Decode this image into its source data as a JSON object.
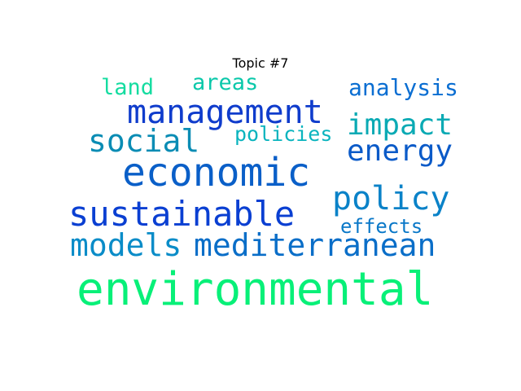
{
  "title": "Topic #7",
  "words": [
    {
      "key": "environmental",
      "text": "environmental",
      "color": "#08f078"
    },
    {
      "key": "economic",
      "text": "economic",
      "color": "#0a5fc8"
    },
    {
      "key": "sustainable",
      "text": "sustainable",
      "color": "#0a3fd2"
    },
    {
      "key": "management",
      "text": "management",
      "color": "#0f3ccc"
    },
    {
      "key": "policy",
      "text": "policy",
      "color": "#0a82c8"
    },
    {
      "key": "mediterranean",
      "text": "mediterranean",
      "color": "#0a6ec8"
    },
    {
      "key": "models",
      "text": "models",
      "color": "#0a8cc8"
    },
    {
      "key": "impact",
      "text": "impact",
      "color": "#0aaab4"
    },
    {
      "key": "social",
      "text": "social",
      "color": "#0a8cb4"
    },
    {
      "key": "energy",
      "text": "energy",
      "color": "#0a5ac8"
    },
    {
      "key": "analysis",
      "text": "analysis",
      "color": "#0a6ed2"
    },
    {
      "key": "areas",
      "text": "areas",
      "color": "#0ac8aa"
    },
    {
      "key": "land",
      "text": "land",
      "color": "#14dca0"
    },
    {
      "key": "policies",
      "text": "policies",
      "color": "#0ab4be"
    },
    {
      "key": "effects",
      "text": "effects",
      "color": "#0a78c8"
    }
  ]
}
